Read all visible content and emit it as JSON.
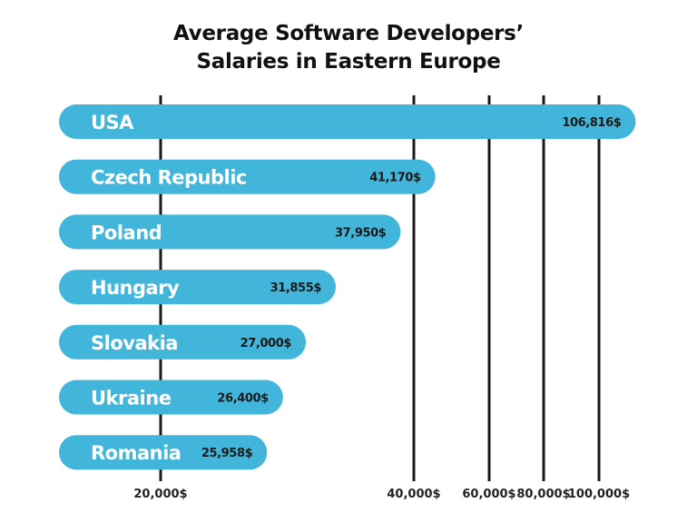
{
  "chart_data": {
    "type": "bar",
    "orientation": "horizontal",
    "title_lines": [
      "Average Software Developers’",
      "Salaries in Eastern Europe"
    ],
    "categories": [
      "USA",
      "Czech Republic",
      "Poland",
      "Hungary",
      "Slovakia",
      "Ukraine",
      "Romania"
    ],
    "values": [
      106816,
      41170,
      37950,
      31855,
      27000,
      26400,
      25958
    ],
    "value_labels": [
      "106,816$",
      "41,170$",
      "37,950$",
      "31,855$",
      "27,000$",
      "26,400$",
      "25,958$"
    ],
    "x_ticks": [
      20000,
      40000,
      60000,
      80000,
      100000
    ],
    "x_tick_labels": [
      "20,000$",
      "40,000$",
      "60,000$",
      "80,000$",
      "100,000$"
    ],
    "xlabel": "",
    "ylabel": "",
    "grid": "vertical lines at ticks",
    "legend": "none",
    "colors": {
      "bar": "#42b6da",
      "bar_label": "#ffffff",
      "value_label": "#1a1a1a",
      "grid": "#1a1a1a"
    }
  }
}
